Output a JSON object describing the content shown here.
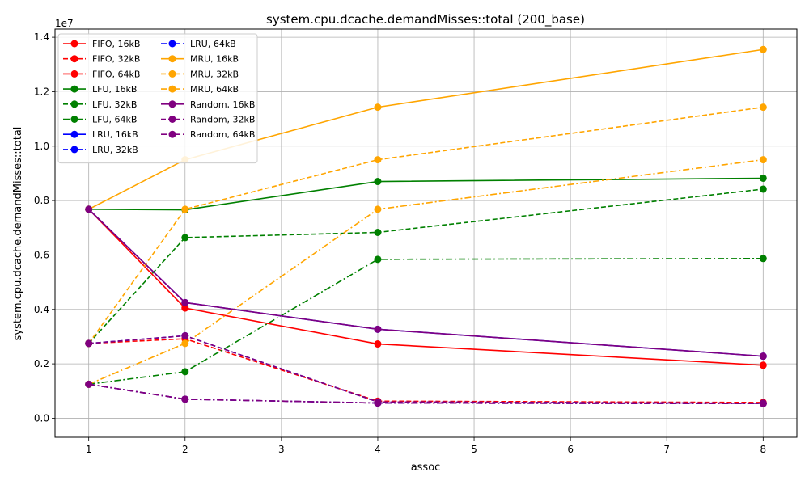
{
  "chart_data": {
    "type": "line",
    "title": "system.cpu.dcache.demandMisses::total (200_base)",
    "xlabel": "assoc",
    "ylabel": "system.cpu.dcache.demandMisses::total",
    "y_offset_label": "1e7",
    "xlim": [
      0.65,
      8.35
    ],
    "ylim": [
      -0.07,
      1.43
    ],
    "y_scale_factor": 10000000,
    "x_ticks": [
      1,
      2,
      3,
      4,
      5,
      6,
      7,
      8
    ],
    "y_ticks": [
      0.0,
      0.2,
      0.4,
      0.6,
      0.8,
      1.0,
      1.2,
      1.4
    ],
    "y_tick_labels": [
      "0.0",
      "0.2",
      "0.4",
      "0.6",
      "0.8",
      "1.0",
      "1.2",
      "1.4"
    ],
    "grid": true,
    "legend_position": "upper-left",
    "legend_columns": 2,
    "x": [
      1,
      2,
      4,
      8
    ],
    "series": [
      {
        "name": "FIFO, 16kB",
        "color": "#ff0000",
        "style": "solid",
        "values": [
          0.768,
          0.405,
          0.273,
          0.195
        ]
      },
      {
        "name": "FIFO, 32kB",
        "color": "#ff0000",
        "style": "dashed",
        "values": [
          0.275,
          0.292,
          0.063,
          0.058
        ]
      },
      {
        "name": "FIFO, 64kB",
        "color": "#ff0000",
        "style": "dashdot",
        "values": [
          0.125,
          0.07,
          0.056,
          0.054
        ]
      },
      {
        "name": "LFU, 16kB",
        "color": "#008000",
        "style": "solid",
        "values": [
          0.768,
          0.766,
          0.87,
          0.882
        ]
      },
      {
        "name": "LFU, 32kB",
        "color": "#008000",
        "style": "dashed",
        "values": [
          0.275,
          0.664,
          0.683,
          0.842
        ]
      },
      {
        "name": "LFU, 64kB",
        "color": "#008000",
        "style": "dashdot",
        "values": [
          0.125,
          0.171,
          0.584,
          0.587
        ]
      },
      {
        "name": "LRU, 16kB",
        "color": "#0000ff",
        "style": "solid",
        "values": [
          0.768,
          0.425,
          0.327,
          0.228
        ]
      },
      {
        "name": "LRU, 32kB",
        "color": "#0000ff",
        "style": "dashed",
        "values": [
          0.275,
          0.303,
          0.06,
          0.055
        ]
      },
      {
        "name": "LRU, 64kB",
        "color": "#0000ff",
        "style": "dashdot",
        "values": [
          0.125,
          0.07,
          0.056,
          0.054
        ]
      },
      {
        "name": "MRU, 16kB",
        "color": "#ffa500",
        "style": "solid",
        "values": [
          0.768,
          0.95,
          1.143,
          1.355
        ]
      },
      {
        "name": "MRU, 32kB",
        "color": "#ffa500",
        "style": "dashed",
        "values": [
          0.275,
          0.768,
          0.95,
          1.143
        ]
      },
      {
        "name": "MRU, 64kB",
        "color": "#ffa500",
        "style": "dashdot",
        "values": [
          0.125,
          0.275,
          0.768,
          0.95
        ]
      },
      {
        "name": "Random, 16kB",
        "color": "#800080",
        "style": "solid",
        "values": [
          0.768,
          0.425,
          0.327,
          0.228
        ]
      },
      {
        "name": "Random, 32kB",
        "color": "#800080",
        "style": "dashed",
        "values": [
          0.275,
          0.303,
          0.06,
          0.055
        ]
      },
      {
        "name": "Random, 64kB",
        "color": "#800080",
        "style": "dashdot",
        "values": [
          0.125,
          0.07,
          0.056,
          0.054
        ]
      }
    ]
  }
}
